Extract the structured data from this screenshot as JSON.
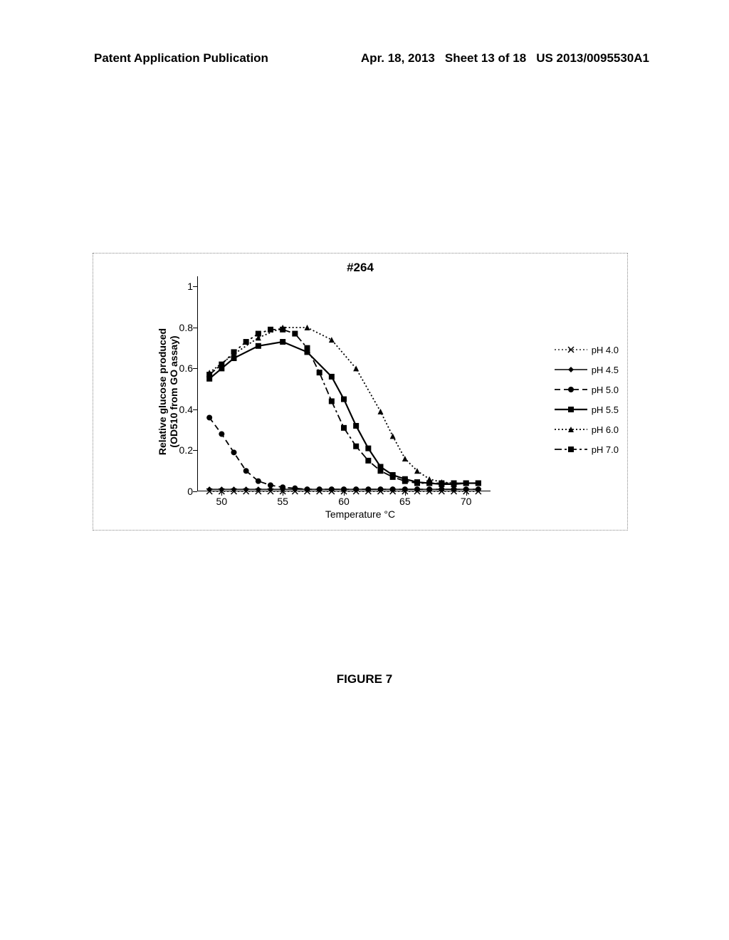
{
  "header": {
    "left": "Patent Application Publication",
    "date": "Apr. 18, 2013",
    "sheet": "Sheet 13 of 18",
    "pubno": "US 2013/0095530A1"
  },
  "figure_caption": "FIGURE 7",
  "chart": {
    "type": "line",
    "title": "#264",
    "xlabel": "Temperature °C",
    "ylabel_line1": "Relative glucose produced",
    "ylabel_line2": "(OD510 from GO assay)",
    "xlim": [
      48,
      72
    ],
    "ylim": [
      0,
      1.05
    ],
    "xticks": [
      50,
      55,
      60,
      65,
      70
    ],
    "yticks": [
      0,
      0.2,
      0.4,
      0.6,
      0.8,
      1
    ],
    "background_color": "#ffffff",
    "axis_color": "#000000",
    "text_color": "#000000",
    "title_fontsize": 17,
    "label_fontsize": 14,
    "tick_fontsize": 14,
    "series": [
      {
        "name": "pH 4.0",
        "marker": "x",
        "dash": "2,3",
        "line_width": 1.2,
        "color": "#000000",
        "x": [
          49,
          50,
          51,
          52,
          53,
          54,
          55,
          56,
          57,
          58,
          59,
          60,
          61,
          62,
          63,
          64,
          65,
          66,
          67,
          68,
          69,
          70,
          71
        ],
        "y": [
          0.0,
          0.0,
          0.0,
          0.0,
          0.0,
          0.0,
          0.0,
          0.0,
          0.0,
          0.0,
          0.0,
          0.0,
          0.0,
          0.0,
          0.0,
          0.0,
          0.0,
          0.0,
          0.0,
          0.0,
          0.0,
          0.0,
          0.0
        ]
      },
      {
        "name": "pH 4.5",
        "marker": "diamond",
        "dash": "none",
        "line_width": 1.6,
        "color": "#000000",
        "x": [
          49,
          50,
          51,
          52,
          53,
          54,
          55,
          56,
          57,
          58,
          59,
          60,
          61,
          62,
          63,
          64,
          65,
          66,
          67,
          68,
          69,
          70,
          71
        ],
        "y": [
          0.01,
          0.01,
          0.01,
          0.01,
          0.01,
          0.01,
          0.01,
          0.01,
          0.01,
          0.01,
          0.01,
          0.01,
          0.01,
          0.01,
          0.01,
          0.01,
          0.01,
          0.01,
          0.01,
          0.01,
          0.01,
          0.01,
          0.01
        ]
      },
      {
        "name": "pH 5.0",
        "marker": "circle",
        "dash": "8,5",
        "line_width": 1.8,
        "color": "#000000",
        "x": [
          49,
          50,
          51,
          52,
          53,
          54,
          55,
          56,
          57,
          58,
          59,
          60,
          61,
          62,
          63,
          64,
          65,
          66,
          67,
          68,
          69,
          70,
          71
        ],
        "y": [
          0.36,
          0.28,
          0.19,
          0.1,
          0.05,
          0.03,
          0.02,
          0.015,
          0.01,
          0.01,
          0.01,
          0.01,
          0.01,
          0.01,
          0.01,
          0.01,
          0.01,
          0.01,
          0.01,
          0.01,
          0.01,
          0.01,
          0.01
        ]
      },
      {
        "name": "pH 5.5",
        "marker": "square",
        "dash": "none",
        "line_width": 2.2,
        "color": "#000000",
        "x": [
          49,
          50,
          51,
          53,
          55,
          57,
          59,
          60,
          61,
          62,
          63,
          64,
          65,
          66,
          67,
          68,
          69,
          70,
          71
        ],
        "y": [
          0.55,
          0.6,
          0.65,
          0.71,
          0.73,
          0.68,
          0.56,
          0.45,
          0.32,
          0.21,
          0.12,
          0.08,
          0.06,
          0.045,
          0.04,
          0.035,
          0.035,
          0.04,
          0.04
        ]
      },
      {
        "name": "pH 6.0",
        "marker": "triangle",
        "dash": "2,3",
        "line_width": 1.8,
        "color": "#000000",
        "x": [
          49,
          51,
          53,
          55,
          57,
          59,
          61,
          63,
          64,
          65,
          66,
          67,
          68,
          69,
          70,
          71
        ],
        "y": [
          0.58,
          0.67,
          0.75,
          0.8,
          0.8,
          0.74,
          0.6,
          0.39,
          0.27,
          0.16,
          0.1,
          0.06,
          0.045,
          0.04,
          0.04,
          0.04
        ]
      },
      {
        "name": "pH 7.0",
        "marker": "square",
        "dash": "10,4,3,4",
        "line_width": 1.8,
        "color": "#000000",
        "x": [
          49,
          50,
          51,
          52,
          53,
          54,
          55,
          56,
          57,
          58,
          59,
          60,
          61,
          62,
          63,
          64,
          65,
          66,
          67,
          68,
          69,
          70,
          71
        ],
        "y": [
          0.57,
          0.62,
          0.68,
          0.73,
          0.77,
          0.79,
          0.79,
          0.77,
          0.7,
          0.58,
          0.44,
          0.31,
          0.22,
          0.15,
          0.1,
          0.07,
          0.05,
          0.04,
          0.04,
          0.04,
          0.04,
          0.04,
          0.04
        ]
      }
    ]
  }
}
